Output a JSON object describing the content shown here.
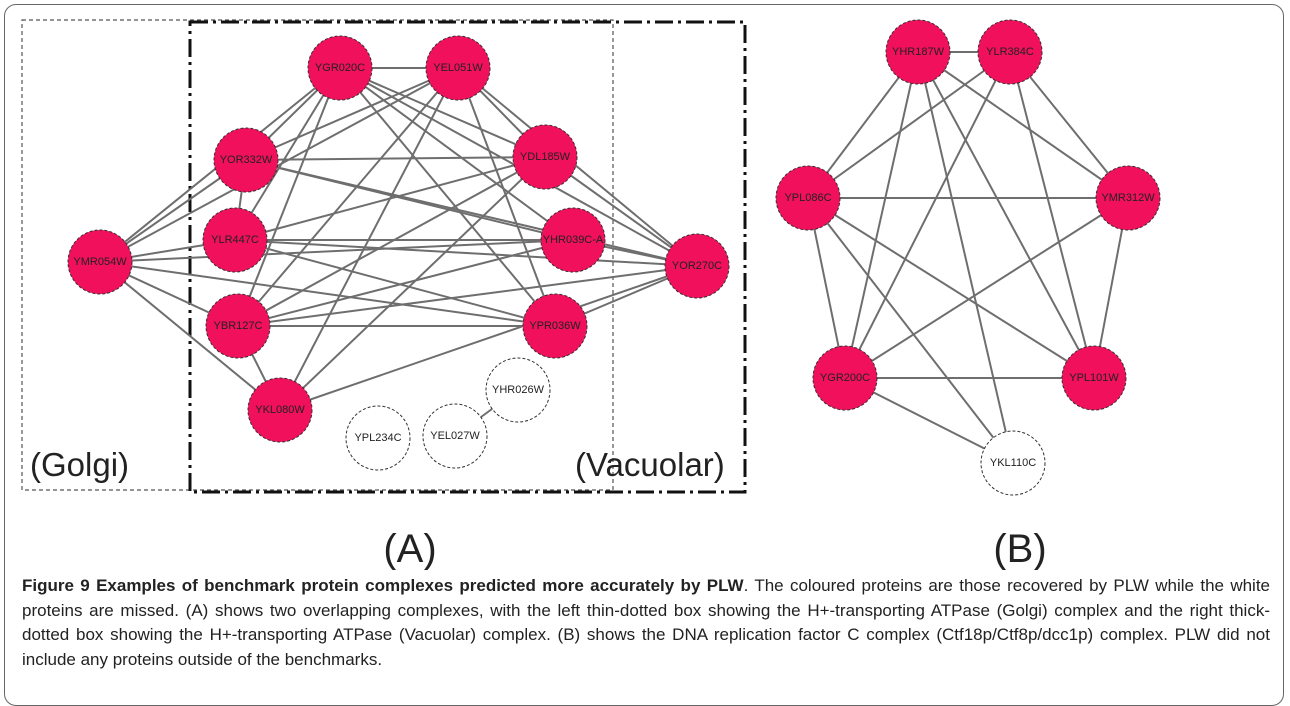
{
  "panel_a": {
    "label": "(A)",
    "box_labels": [
      "(Golgi)",
      "(Vacuolar)"
    ],
    "nodes": [
      {
        "label": "YGR020C",
        "recovered": true
      },
      {
        "label": "YEL051W",
        "recovered": true
      },
      {
        "label": "YOR332W",
        "recovered": true
      },
      {
        "label": "YDL185W",
        "recovered": true
      },
      {
        "label": "YLR447C",
        "recovered": true
      },
      {
        "label": "YHR039C-A",
        "recovered": true
      },
      {
        "label": "YMR054W",
        "recovered": true
      },
      {
        "label": "YOR270C",
        "recovered": true
      },
      {
        "label": "YBR127C",
        "recovered": true
      },
      {
        "label": "YPR036W",
        "recovered": true
      },
      {
        "label": "YKL080W",
        "recovered": true
      },
      {
        "label": "YPL234C",
        "recovered": false
      },
      {
        "label": "YEL027W",
        "recovered": false
      },
      {
        "label": "YHR026W",
        "recovered": false
      }
    ]
  },
  "panel_b": {
    "label": "(B)",
    "nodes": [
      {
        "label": "YHR187W",
        "recovered": true
      },
      {
        "label": "YLR384C",
        "recovered": true
      },
      {
        "label": "YPL086C",
        "recovered": true
      },
      {
        "label": "YMR312W",
        "recovered": true
      },
      {
        "label": "YGR200C",
        "recovered": true
      },
      {
        "label": "YPL101W",
        "recovered": true
      },
      {
        "label": "YKL110C",
        "recovered": false
      }
    ]
  },
  "caption": {
    "title": "Figure 9 Examples of benchmark protein complexes predicted more accurately by PLW",
    "text": ". The coloured proteins are those recovered by PLW while the white proteins are missed. (A) shows two overlapping complexes, with the left thin-dotted box showing the H+-transporting ATPase (Golgi) complex and the right thick-dotted box showing the H+-transporting ATPase (Vacuolar) complex. (B) shows the DNA replication factor C complex (Ctf18p/Ctf8p/dcc1p) complex. PLW did not include any proteins outside of the benchmarks."
  }
}
